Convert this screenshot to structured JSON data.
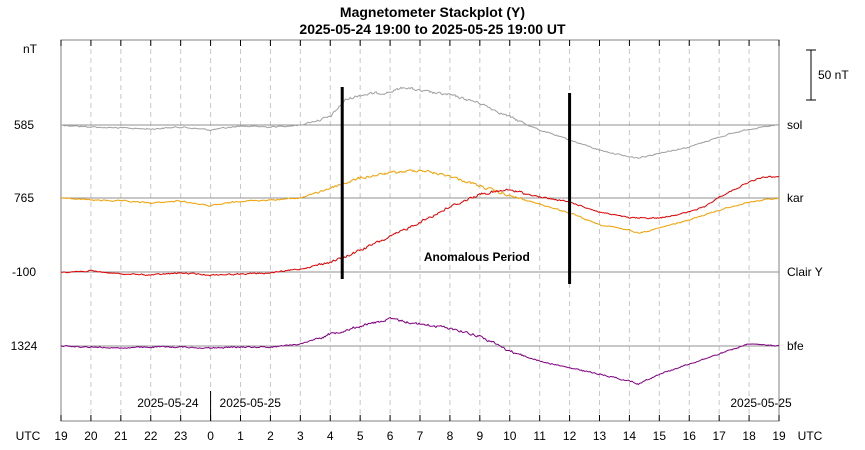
{
  "chart_data": {
    "type": "line",
    "title": "Magnetometer Stackplot (Y)",
    "subtitle": "2025-05-24 19:00 to 2025-05-25 19:00 UT",
    "y_unit_label": "nT",
    "x_unit_label": "UTC",
    "x_tick_labels": [
      "19",
      "20",
      "21",
      "22",
      "23",
      "0",
      "1",
      "2",
      "3",
      "4",
      "5",
      "6",
      "7",
      "8",
      "9",
      "10",
      "11",
      "12",
      "13",
      "14",
      "15",
      "16",
      "17",
      "18",
      "19"
    ],
    "scale_bar": {
      "label": "50 nT",
      "value": 50
    },
    "date_labels": [
      {
        "text": "2025-05-24",
        "hour": 23.6,
        "align": "end"
      },
      {
        "text": "2025-05-25",
        "hour": 24.3,
        "align": "start"
      },
      {
        "text": "2025-05-25",
        "hour": 42.4,
        "align": "middle"
      }
    ],
    "date_divider_hour": 24,
    "annotation": {
      "text": "Anomalous Period",
      "hour": 32.9,
      "row": 2
    },
    "event_markers": [
      {
        "hour": 28.4
      },
      {
        "hour": 36.0
      }
    ],
    "x_range_hours": [
      19,
      43
    ],
    "grid": "vertical dashed every hour",
    "series": [
      {
        "name": "sol",
        "baseline_label": "585",
        "color": "#a0a0a0",
        "points": [
          [
            19,
            0
          ],
          [
            20,
            -2
          ],
          [
            21,
            -3
          ],
          [
            22,
            -4
          ],
          [
            23,
            -2
          ],
          [
            24,
            -5
          ],
          [
            25,
            -1
          ],
          [
            26,
            -2
          ],
          [
            27,
            0
          ],
          [
            28,
            8
          ],
          [
            28.5,
            25
          ],
          [
            29,
            30
          ],
          [
            30,
            33
          ],
          [
            30.5,
            38
          ],
          [
            31,
            34
          ],
          [
            32,
            30
          ],
          [
            33,
            22
          ],
          [
            34,
            8
          ],
          [
            35,
            -5
          ],
          [
            36,
            -15
          ],
          [
            37,
            -25
          ],
          [
            38,
            -32
          ],
          [
            38.3,
            -33
          ],
          [
            39,
            -28
          ],
          [
            40,
            -22
          ],
          [
            41,
            -12
          ],
          [
            42,
            -4
          ],
          [
            43,
            0
          ]
        ]
      },
      {
        "name": "kar",
        "baseline_label": "765",
        "color": "#f0a000",
        "points": [
          [
            19,
            0
          ],
          [
            20,
            -2
          ],
          [
            21,
            -3
          ],
          [
            22,
            -5
          ],
          [
            23,
            -3
          ],
          [
            24,
            -8
          ],
          [
            25,
            -3
          ],
          [
            26,
            -2
          ],
          [
            27,
            0
          ],
          [
            28,
            10
          ],
          [
            29,
            20
          ],
          [
            30,
            25
          ],
          [
            31,
            28
          ],
          [
            32,
            22
          ],
          [
            33,
            12
          ],
          [
            34,
            2
          ],
          [
            35,
            -6
          ],
          [
            36,
            -15
          ],
          [
            37,
            -27
          ],
          [
            38,
            -32
          ],
          [
            38.3,
            -35
          ],
          [
            39,
            -30
          ],
          [
            40,
            -22
          ],
          [
            41,
            -12
          ],
          [
            42,
            -4
          ],
          [
            43,
            0
          ]
        ]
      },
      {
        "name": "Clair Y",
        "baseline_label": "-100",
        "color": "#dd0000",
        "points": [
          [
            19,
            0
          ],
          [
            20,
            1
          ],
          [
            21,
            -2
          ],
          [
            22,
            -3
          ],
          [
            23,
            -1
          ],
          [
            24,
            -3
          ],
          [
            25,
            -2
          ],
          [
            26,
            -1
          ],
          [
            27,
            3
          ],
          [
            28,
            10
          ],
          [
            28.5,
            15
          ],
          [
            29,
            22
          ],
          [
            30,
            35
          ],
          [
            31,
            50
          ],
          [
            32,
            65
          ],
          [
            33,
            78
          ],
          [
            34,
            82
          ],
          [
            35,
            75
          ],
          [
            36,
            70
          ],
          [
            37,
            60
          ],
          [
            38,
            54
          ],
          [
            39,
            54
          ],
          [
            40,
            60
          ],
          [
            40.5,
            65
          ],
          [
            41,
            75
          ],
          [
            42,
            90
          ],
          [
            42.5,
            95
          ],
          [
            43,
            95
          ]
        ]
      },
      {
        "name": "bfe",
        "baseline_label": "1324",
        "color": "#800080",
        "points": [
          [
            19,
            0
          ],
          [
            20,
            -1
          ],
          [
            21,
            -2
          ],
          [
            22,
            -1
          ],
          [
            23,
            -1
          ],
          [
            24,
            -2
          ],
          [
            25,
            -1
          ],
          [
            26,
            -1
          ],
          [
            27,
            2
          ],
          [
            28,
            12
          ],
          [
            29,
            20
          ],
          [
            30,
            27
          ],
          [
            31,
            22
          ],
          [
            32,
            18
          ],
          [
            33,
            10
          ],
          [
            34,
            -5
          ],
          [
            35,
            -15
          ],
          [
            36,
            -22
          ],
          [
            37,
            -28
          ],
          [
            38,
            -35
          ],
          [
            38.3,
            -38
          ],
          [
            39,
            -28
          ],
          [
            40,
            -18
          ],
          [
            41,
            -8
          ],
          [
            42,
            2
          ],
          [
            43,
            0
          ]
        ]
      }
    ]
  }
}
